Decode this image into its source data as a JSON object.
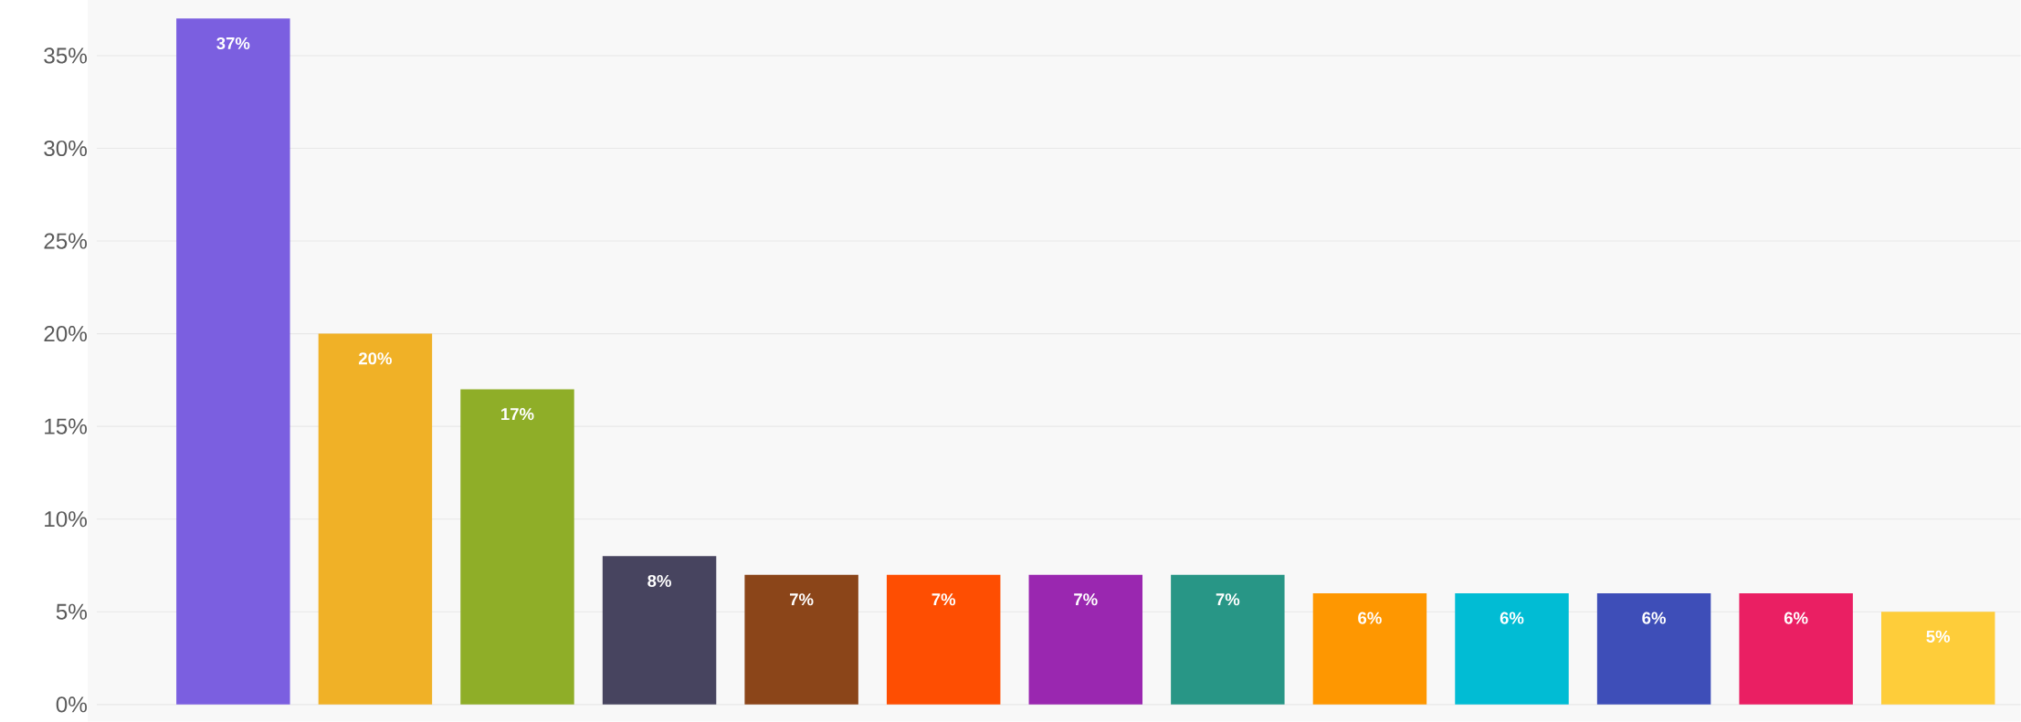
{
  "chart_data": {
    "type": "bar",
    "categories": [
      null,
      null,
      null,
      null,
      null,
      null,
      null,
      null,
      null,
      null,
      null,
      null,
      null
    ],
    "values": [
      37,
      20,
      17,
      8,
      7,
      7,
      7,
      7,
      6,
      6,
      6,
      6,
      5
    ],
    "colors": [
      "#7b5fe0",
      "#f0b127",
      "#8fae28",
      "#47445f",
      "#8b4519",
      "#fe4e02",
      "#9a27b0",
      "#289686",
      "#fe9701",
      "#01bcd4",
      "#3e4eb8",
      "#ea1f63",
      "#fecd3a"
    ],
    "value_labels": [
      "37%",
      "20%",
      "17%",
      "8%",
      "7%",
      "7%",
      "7%",
      "7%",
      "6%",
      "6%",
      "6%",
      "6%",
      "5%"
    ],
    "ylim": [
      0,
      38
    ],
    "yticks": [
      {
        "value": 0,
        "label": "0%"
      },
      {
        "value": 5,
        "label": "5%"
      },
      {
        "value": 10,
        "label": "10%"
      },
      {
        "value": 15,
        "label": "15%"
      },
      {
        "value": 20,
        "label": "20%"
      },
      {
        "value": 25,
        "label": "25%"
      },
      {
        "value": 30,
        "label": "30%"
      },
      {
        "value": 35,
        "label": "35%"
      }
    ],
    "grid": "y",
    "tick_labels": "y"
  }
}
